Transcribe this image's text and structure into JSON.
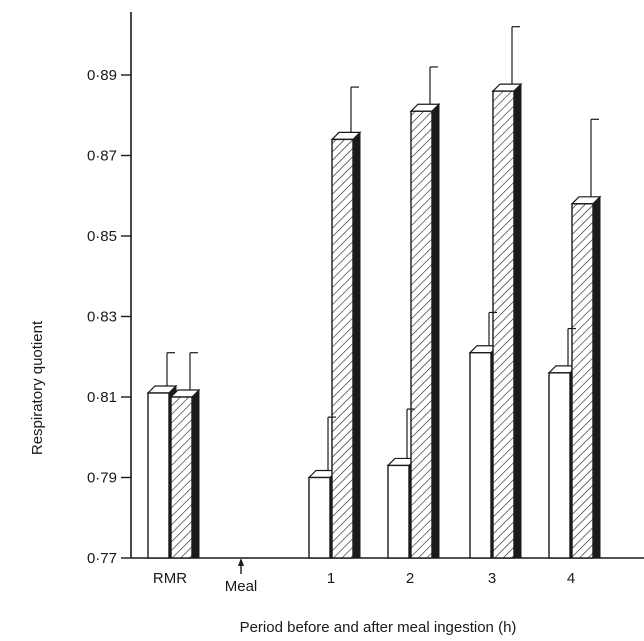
{
  "chart_data": {
    "type": "bar",
    "title": "",
    "xlabel": "Period before and after meal ingestion (h)",
    "ylabel": "Respiratory quotient",
    "ylim": [
      0.77,
      0.9
    ],
    "yticks": [
      0.77,
      0.79,
      0.81,
      0.83,
      0.85,
      0.87,
      0.89
    ],
    "ytick_labels": [
      "0·77",
      "0·79",
      "0·81",
      "0·83",
      "0·85",
      "0·87",
      "0·89"
    ],
    "categories": [
      "RMR",
      "Meal",
      "1",
      "2",
      "3",
      "4"
    ],
    "meal_marker": "Meal",
    "legend": "none",
    "grid": false,
    "series": [
      {
        "pattern": "open",
        "values": [
          0.811,
          null,
          0.79,
          0.793,
          0.821,
          0.816
        ],
        "errors": [
          0.01,
          null,
          0.015,
          0.014,
          0.01,
          0.011
        ]
      },
      {
        "pattern": "hatched",
        "values": [
          0.81,
          null,
          0.874,
          0.881,
          0.886,
          0.858
        ],
        "errors": [
          0.011,
          null,
          0.013,
          0.011,
          0.016,
          0.021
        ]
      }
    ],
    "colors": {
      "ink": "#1a1a1a",
      "fill": "#ffffff"
    }
  }
}
